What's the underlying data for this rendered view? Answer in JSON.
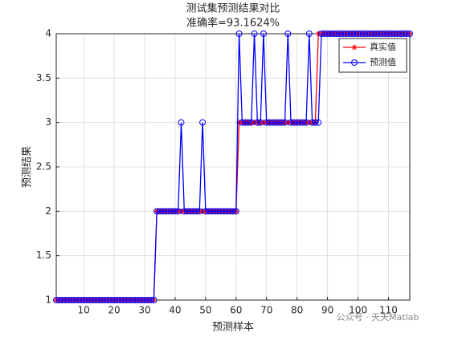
{
  "chart_data": {
    "type": "line",
    "title": "测试集预测结果对比",
    "subtitle": "准确率=93.1624%",
    "x_label": "预测样本",
    "y_label": "预测结果",
    "watermark": "公众号 · 天天Matlab",
    "x": [
      1,
      2,
      3,
      4,
      5,
      6,
      7,
      8,
      9,
      10,
      11,
      12,
      13,
      14,
      15,
      16,
      17,
      18,
      19,
      20,
      21,
      22,
      23,
      24,
      25,
      26,
      27,
      28,
      29,
      30,
      31,
      32,
      33,
      34,
      35,
      36,
      37,
      38,
      39,
      40,
      41,
      42,
      43,
      44,
      45,
      46,
      47,
      48,
      49,
      50,
      51,
      52,
      53,
      54,
      55,
      56,
      57,
      58,
      59,
      60,
      61,
      62,
      63,
      64,
      65,
      66,
      67,
      68,
      69,
      70,
      71,
      72,
      73,
      74,
      75,
      76,
      77,
      78,
      79,
      80,
      81,
      82,
      83,
      84,
      85,
      86,
      87,
      88,
      89,
      90,
      91,
      92,
      93,
      94,
      95,
      96,
      97,
      98,
      99,
      100,
      101,
      102,
      103,
      104,
      105,
      106,
      107,
      108,
      109,
      110,
      111,
      112,
      113,
      114,
      115,
      116,
      117
    ],
    "series": [
      {
        "name": "真实值",
        "color": "#ff0000",
        "marker": "star",
        "values": [
          1,
          1,
          1,
          1,
          1,
          1,
          1,
          1,
          1,
          1,
          1,
          1,
          1,
          1,
          1,
          1,
          1,
          1,
          1,
          1,
          1,
          1,
          1,
          1,
          1,
          1,
          1,
          1,
          1,
          1,
          1,
          1,
          1,
          2,
          2,
          2,
          2,
          2,
          2,
          2,
          2,
          2,
          2,
          2,
          2,
          2,
          2,
          2,
          2,
          2,
          2,
          2,
          2,
          2,
          2,
          2,
          2,
          2,
          2,
          2,
          3,
          3,
          3,
          3,
          3,
          3,
          3,
          3,
          3,
          3,
          3,
          3,
          3,
          3,
          3,
          3,
          3,
          3,
          3,
          3,
          3,
          3,
          3,
          3,
          3,
          3,
          4,
          4,
          4,
          4,
          4,
          4,
          4,
          4,
          4,
          4,
          4,
          4,
          4,
          4,
          4,
          4,
          4,
          4,
          4,
          4,
          4,
          4,
          4,
          4,
          4,
          4,
          4,
          4,
          4,
          4,
          4
        ]
      },
      {
        "name": "预测值",
        "color": "#0000ff",
        "marker": "circle",
        "values": [
          1,
          1,
          1,
          1,
          1,
          1,
          1,
          1,
          1,
          1,
          1,
          1,
          1,
          1,
          1,
          1,
          1,
          1,
          1,
          1,
          1,
          1,
          1,
          1,
          1,
          1,
          1,
          1,
          1,
          1,
          1,
          1,
          1,
          2,
          2,
          2,
          2,
          2,
          2,
          2,
          2,
          3,
          2,
          2,
          2,
          2,
          2,
          2,
          3,
          2,
          2,
          2,
          2,
          2,
          2,
          2,
          2,
          2,
          2,
          2,
          4,
          3,
          3,
          3,
          3,
          4,
          3,
          3,
          4,
          3,
          3,
          3,
          3,
          3,
          3,
          3,
          4,
          3,
          3,
          3,
          3,
          3,
          3,
          4,
          3,
          3,
          3,
          4,
          4,
          4,
          4,
          4,
          4,
          4,
          4,
          4,
          4,
          4,
          4,
          4,
          4,
          4,
          4,
          4,
          4,
          4,
          4,
          4,
          4,
          4,
          4,
          4,
          4,
          4,
          4,
          4,
          4
        ]
      }
    ],
    "xlim": [
      1,
      117
    ],
    "xticks": [
      10,
      20,
      30,
      40,
      50,
      60,
      70,
      80,
      90,
      100,
      110
    ],
    "ylim": [
      1,
      4
    ],
    "yticks": [
      1,
      1.5,
      2,
      2.5,
      3,
      3.5,
      4
    ],
    "grid": true,
    "legend": "upper right"
  }
}
